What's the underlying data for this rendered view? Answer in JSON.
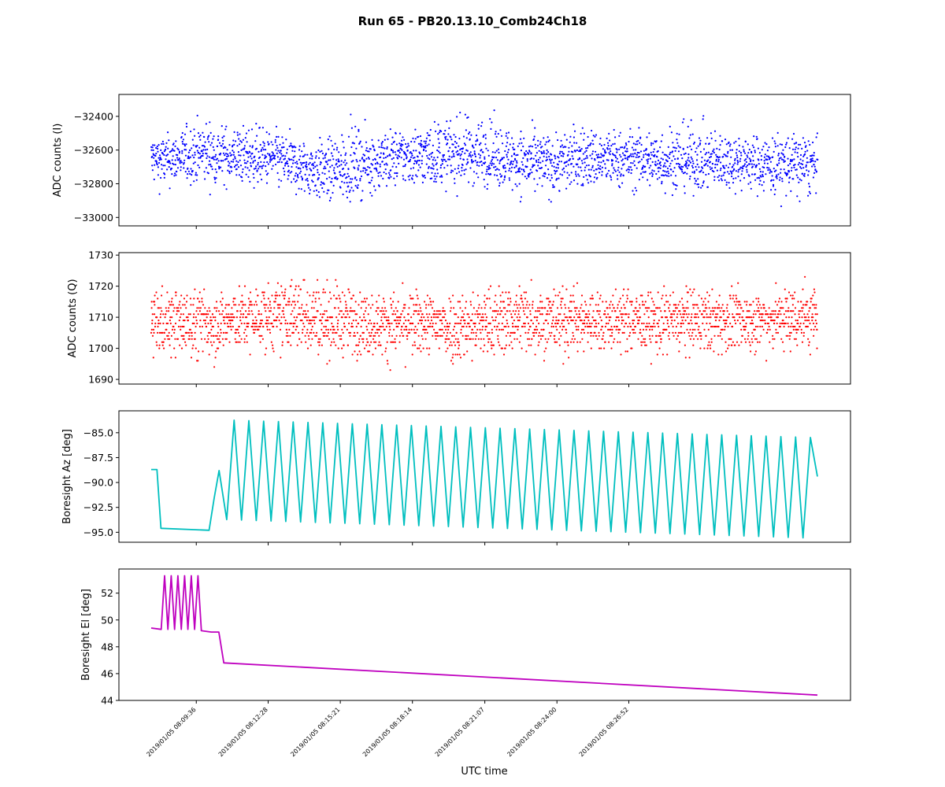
{
  "figure": {
    "title": "Run 65 - PB20.13.10_Comb24Ch18",
    "xlabel": "UTC time"
  },
  "chart_data": [
    {
      "type": "scatter",
      "color": "#0000ff",
      "ylabel": "ADC counts (I)",
      "yticks": [
        -32400,
        -32600,
        -32800,
        -33000
      ],
      "yticklabels": [
        "−32400",
        "−32600",
        "−32800",
        "−33000"
      ],
      "ylim": [
        -33050,
        -32270
      ],
      "series": [
        {
          "x_minutes": [
            0,
            0.5,
            1,
            2,
            3,
            4,
            5,
            6,
            7,
            8,
            9,
            10,
            11,
            12,
            13,
            14,
            15,
            16,
            17,
            18,
            19,
            20,
            21,
            22,
            23,
            24,
            25,
            26,
            26.6
          ],
          "center": [
            -32650,
            -32660,
            -32650,
            -32620,
            -32640,
            -32640,
            -32650,
            -32700,
            -32720,
            -32690,
            -32670,
            -32640,
            -32630,
            -32620,
            -32620,
            -32640,
            -32670,
            -32680,
            -32650,
            -32660,
            -32650,
            -32660,
            -32660,
            -32670,
            -32660,
            -32670,
            -32680,
            -32680,
            -32690
          ],
          "upper": [
            -32450,
            -32450,
            -32430,
            -32330,
            -32380,
            -32380,
            -32420,
            -32480,
            -32470,
            -32380,
            -32420,
            -32400,
            -32370,
            -32330,
            -32300,
            -32380,
            -32420,
            -32430,
            -32380,
            -32400,
            -32420,
            -32400,
            -32350,
            -32380,
            -32420,
            -32450,
            -32430,
            -32420,
            -32480
          ],
          "lower": [
            -32870,
            -32900,
            -32850,
            -32880,
            -32860,
            -32880,
            -32900,
            -32950,
            -33000,
            -32960,
            -32920,
            -32880,
            -32900,
            -32900,
            -32880,
            -32900,
            -32980,
            -32950,
            -32900,
            -32900,
            -32900,
            -32920,
            -32920,
            -32920,
            -32900,
            -32920,
            -32970,
            -32980,
            -32920
          ]
        }
      ]
    },
    {
      "type": "scatter",
      "color": "#ff0000",
      "ylabel": "ADC counts (Q)",
      "yticks": [
        1730,
        1720,
        1710,
        1700,
        1690
      ],
      "yticklabels": [
        "1730",
        "1720",
        "1710",
        "1700",
        "1690"
      ],
      "ylim": [
        1688.5,
        1730.8
      ],
      "series": [
        {
          "x_minutes": [
            0,
            1,
            2,
            3,
            4,
            5,
            6,
            7,
            8,
            9,
            10,
            11,
            12,
            13,
            14,
            15,
            16,
            17,
            18,
            19,
            20,
            21,
            22,
            23,
            24,
            25,
            26,
            26.6
          ],
          "center": [
            1709,
            1709,
            1709,
            1709,
            1710,
            1710,
            1711,
            1709,
            1709,
            1708,
            1708,
            1708,
            1707,
            1708,
            1709,
            1710,
            1709,
            1709,
            1709,
            1709,
            1709,
            1709,
            1709,
            1709,
            1709,
            1710,
            1710,
            1710
          ],
          "upper": [
            1724,
            1723,
            1723,
            1722,
            1724,
            1726,
            1729,
            1727,
            1724,
            1722,
            1722,
            1723,
            1724,
            1723,
            1725,
            1728,
            1724,
            1724,
            1723,
            1723,
            1722,
            1724,
            1723,
            1723,
            1722,
            1722,
            1728,
            1725
          ],
          "lower": [
            1693,
            1692,
            1690,
            1693,
            1695,
            1695,
            1694,
            1693,
            1693,
            1693,
            1691,
            1694,
            1691,
            1690,
            1693,
            1694,
            1693,
            1694,
            1694,
            1695,
            1693,
            1693,
            1694,
            1694,
            1695,
            1695,
            1694,
            1696
          ]
        }
      ]
    },
    {
      "type": "line",
      "color": "#00bfbf",
      "ylabel": "Boresight Az [deg]",
      "yticks": [
        -85.0,
        -87.5,
        -90.0,
        -92.5,
        -95.0
      ],
      "yticklabels": [
        "−85.0",
        "−87.5",
        "−90.0",
        "−92.5",
        "−95.0"
      ],
      "ylim": [
        -96.0,
        -82.8
      ],
      "series": [
        {
          "name": "",
          "x_minutes": [
            0,
            0.23,
            0.39,
            2.31,
            2.52,
            2.71
          ],
          "values": [
            -88.7,
            -88.7,
            -94.6,
            -94.8,
            -91.5,
            -88.8
          ],
          "scan": {
            "start_minute": 2.72,
            "end_minute": 26.6,
            "period_minutes": 0.59,
            "max_start": -83.7,
            "max_end": -85.5,
            "min_start": -93.7,
            "min_end": -95.6,
            "end_value": -89.4
          }
        }
      ]
    },
    {
      "type": "line",
      "color": "#bf00bf",
      "ylabel": "Boresight El [deg]",
      "yticks": [
        52,
        50,
        48,
        46,
        44
      ],
      "yticklabels": [
        "52",
        "50",
        "48",
        "46",
        "44"
      ],
      "ylim": [
        44.0,
        53.8
      ],
      "series": [
        {
          "name": "",
          "x_minutes": [
            0,
            0.4,
            0.4,
            2.0,
            2.0,
            2.4,
            2.7,
            2.9,
            26.6
          ],
          "values": [
            49.4,
            49.3,
            49.3,
            49.3,
            49.2,
            49.1,
            49.1,
            46.8,
            44.4
          ],
          "oscillation": {
            "start_minute": 0.4,
            "end_minute": 2.0,
            "cycles": 6,
            "max": 53.3,
            "min": 49.3
          }
        }
      ]
    }
  ],
  "x_axis": {
    "start_time": "2019/01/05 08:07:48",
    "total_minutes": 26.6,
    "ticks_minutes": [
      1.8,
      4.67,
      7.55,
      10.43,
      13.32,
      16.2,
      19.07
    ],
    "ticklabels": [
      "2019/01/05 08:09:36",
      "2019/01/05 08:12:28",
      "2019/01/05 08:15:21",
      "2019/01/05 08:18:14",
      "2019/01/05 08:21:07",
      "2019/01/05 08:24:00",
      "2019/01/05 08:26:52"
    ]
  }
}
